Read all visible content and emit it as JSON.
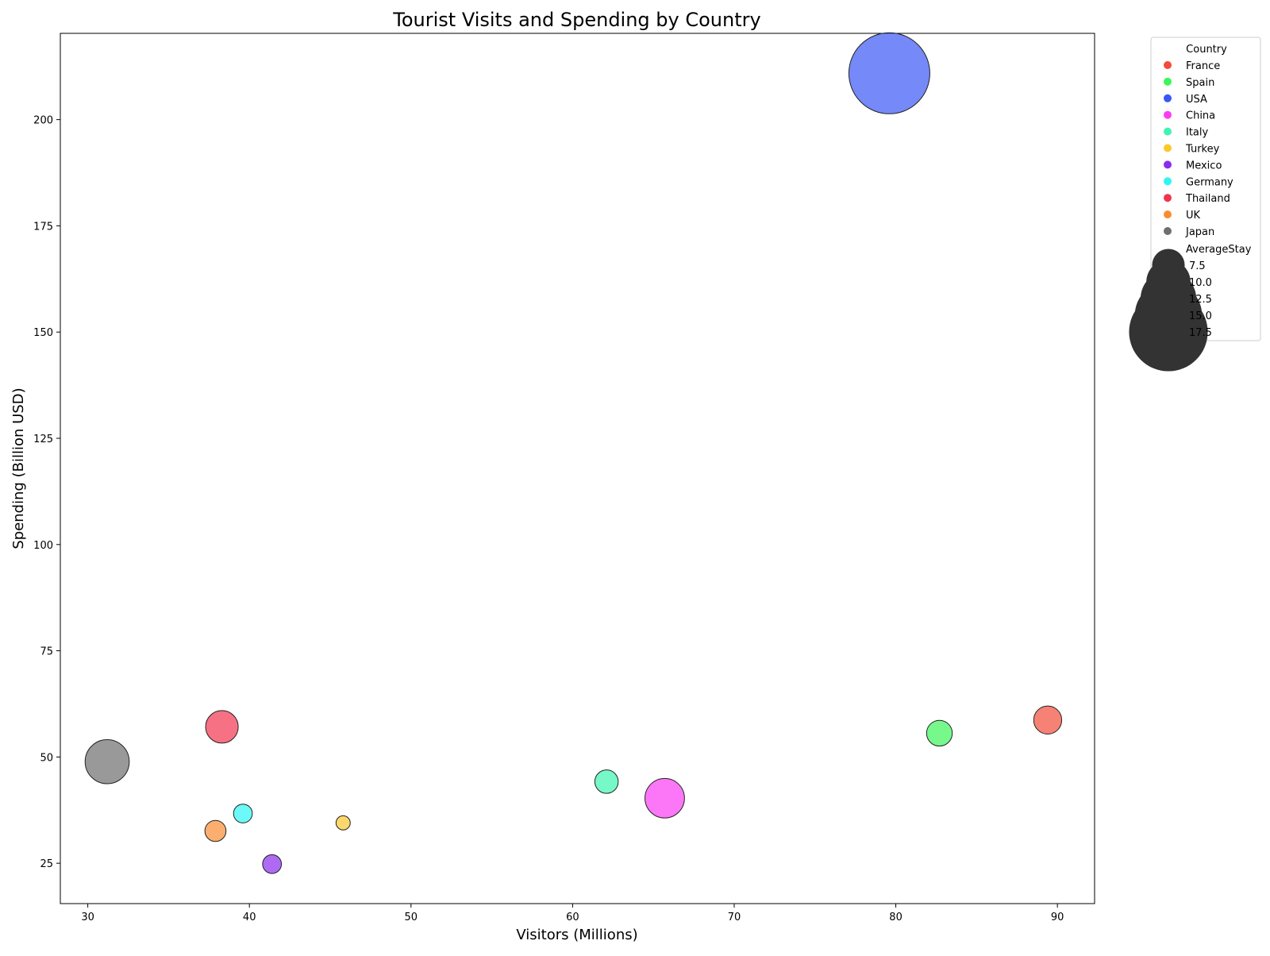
{
  "chart_data": {
    "type": "scatter",
    "title": "Tourist Visits and Spending by Country",
    "xlabel": "Visitors (Millions)",
    "ylabel": "Spending (Billion USD)",
    "xlim": [
      28.3,
      92.3
    ],
    "ylim": [
      15.5,
      220.3
    ],
    "xticks": [
      30,
      40,
      50,
      60,
      70,
      80,
      90
    ],
    "yticks": [
      25,
      50,
      75,
      100,
      125,
      150,
      175,
      200
    ],
    "grid": false,
    "legend": {
      "placement": "outside-top-right",
      "hue_title": "Country",
      "size_title": "AverageStay",
      "size_entries": [
        7.5,
        10.0,
        12.5,
        15.0,
        17.5
      ]
    },
    "series": [
      {
        "name": "France",
        "color": "#f24b3b",
        "points": [
          {
            "x": 89.4,
            "y": 58.7,
            "size": 6.5
          }
        ]
      },
      {
        "name": "Spain",
        "color": "#3df55a",
        "points": [
          {
            "x": 82.7,
            "y": 55.6,
            "size": 6.0
          }
        ]
      },
      {
        "name": "USA",
        "color": "#3a57f5",
        "points": [
          {
            "x": 79.6,
            "y": 210.9,
            "size": 18.0
          }
        ]
      },
      {
        "name": "China",
        "color": "#fb3df4",
        "points": [
          {
            "x": 65.7,
            "y": 40.3,
            "size": 9.0
          }
        ]
      },
      {
        "name": "Italy",
        "color": "#3df5b1",
        "points": [
          {
            "x": 62.1,
            "y": 44.2,
            "size": 5.5
          }
        ]
      },
      {
        "name": "Turkey",
        "color": "#fbc72d",
        "points": [
          {
            "x": 45.8,
            "y": 34.5,
            "size": 3.5
          }
        ]
      },
      {
        "name": "Mexico",
        "color": "#8a2cf0",
        "points": [
          {
            "x": 41.4,
            "y": 24.8,
            "size": 4.5
          }
        ]
      },
      {
        "name": "Germany",
        "color": "#2df6f4",
        "points": [
          {
            "x": 39.6,
            "y": 36.7,
            "size": 4.5
          }
        ]
      },
      {
        "name": "Thailand",
        "color": "#f2344f",
        "points": [
          {
            "x": 38.3,
            "y": 57.1,
            "size": 7.5
          }
        ]
      },
      {
        "name": "UK",
        "color": "#f98c31",
        "points": [
          {
            "x": 37.9,
            "y": 32.6,
            "size": 5.0
          }
        ]
      },
      {
        "name": "Japan",
        "color": "#6e6e6e",
        "points": [
          {
            "x": 31.2,
            "y": 48.9,
            "size": 10.0
          }
        ]
      }
    ]
  }
}
